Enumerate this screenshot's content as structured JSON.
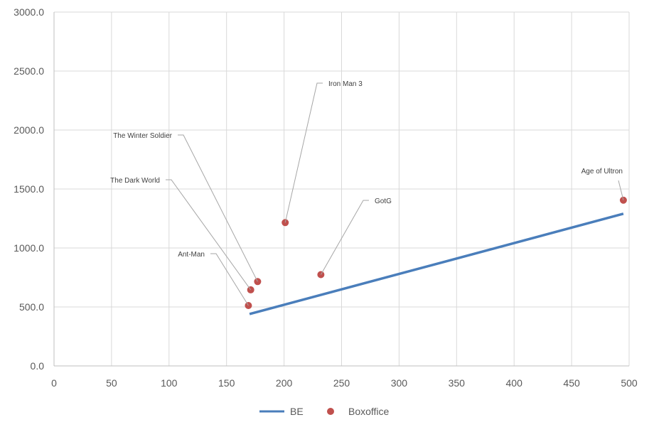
{
  "chart_data": {
    "type": "scatter",
    "title": "",
    "xlabel": "",
    "ylabel": "",
    "xlim": [
      0,
      500
    ],
    "ylim": [
      0,
      3000
    ],
    "x_ticks": [
      "0",
      "50",
      "100",
      "150",
      "200",
      "250",
      "300",
      "350",
      "400",
      "450",
      "500"
    ],
    "y_ticks": [
      "0.0",
      "500.0",
      "1000.0",
      "1500.0",
      "2000.0",
      "2500.0",
      "3000.0"
    ],
    "grid": true,
    "legend_position": "bottom",
    "series": [
      {
        "name": "BE",
        "type": "line",
        "color": "#4a7ebb",
        "points": [
          {
            "x": 170,
            "y": 440
          },
          {
            "x": 495,
            "y": 1290
          }
        ]
      },
      {
        "name": "Boxoffice",
        "type": "scatter",
        "color": "#c0504d",
        "points": [
          {
            "label": "Ant-Man",
            "x": 169,
            "y": 512
          },
          {
            "label": "The Dark World",
            "x": 171,
            "y": 645
          },
          {
            "label": "The Winter Soldier",
            "x": 177,
            "y": 715
          },
          {
            "label": "Iron Man 3",
            "x": 201,
            "y": 1215
          },
          {
            "label": "GotG",
            "x": 232,
            "y": 774
          },
          {
            "label": "Age of Ultron",
            "x": 495,
            "y": 1405
          }
        ]
      }
    ]
  }
}
